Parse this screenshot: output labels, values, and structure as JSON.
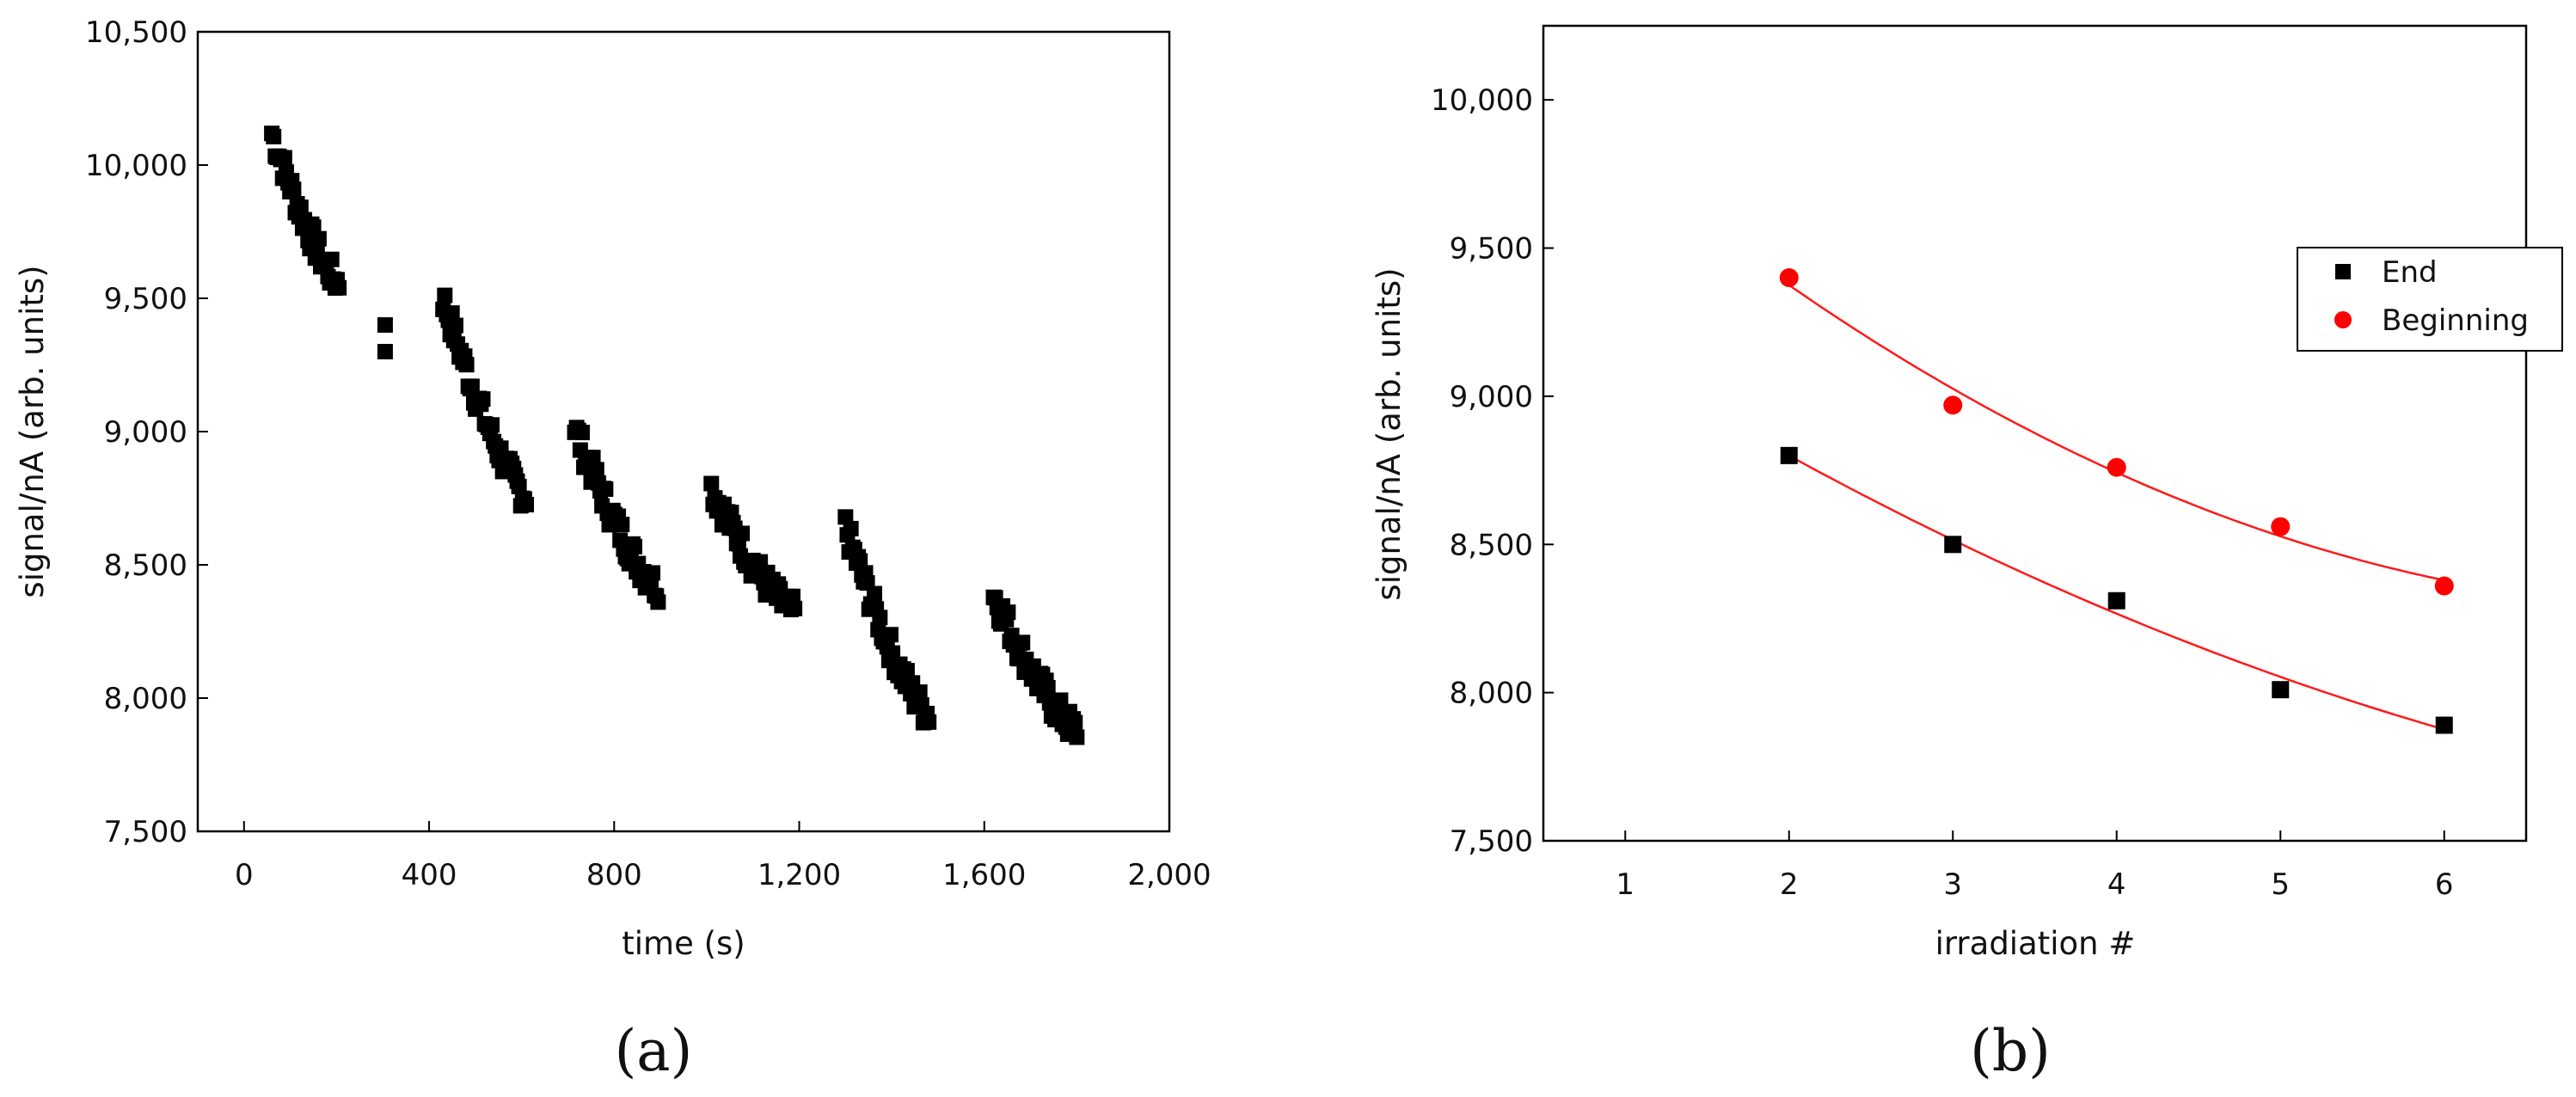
{
  "chart_data": [
    {
      "type": "scatter",
      "panel_label": "(a)",
      "xlabel": "time (s)",
      "ylabel": "signal/nA (arb. units)",
      "xlim": [
        -100,
        2000
      ],
      "ylim": [
        7500,
        10500
      ],
      "xticks": [
        0,
        400,
        800,
        1200,
        1600,
        2000
      ],
      "xtick_labels": [
        "0",
        "400",
        "800",
        "1,200",
        "1,600",
        "2,000"
      ],
      "yticks": [
        7500,
        8000,
        8500,
        9000,
        9500,
        10000,
        10500
      ],
      "ytick_labels": [
        "7,500",
        "8,000",
        "8,500",
        "9,000",
        "9,500",
        "10,000",
        "10,500"
      ],
      "marker": "square",
      "color": "#000000",
      "segments": [
        {
          "x_start": 60,
          "x_end": 205,
          "y_start": 10120,
          "y_end": 9560
        },
        {
          "x_start": 305,
          "x_end": 305,
          "y_start": 9400,
          "y_end": 9300
        },
        {
          "x_start": 430,
          "x_end": 610,
          "y_start": 9500,
          "y_end": 8760
        },
        {
          "x_start": 715,
          "x_end": 895,
          "y_start": 9010,
          "y_end": 8420
        },
        {
          "x_start": 1010,
          "x_end": 1190,
          "y_start": 8790,
          "y_end": 8320
        },
        {
          "x_start": 1300,
          "x_end": 1480,
          "y_start": 8640,
          "y_end": 7940
        },
        {
          "x_start": 1620,
          "x_end": 1800,
          "y_start": 8390,
          "y_end": 7880
        }
      ]
    },
    {
      "type": "scatter",
      "panel_label": "(b)",
      "xlabel": "irradiation #",
      "ylabel": "signal/nA (arb. units)",
      "xlim": [
        0.5,
        6.5
      ],
      "ylim": [
        7500,
        10250
      ],
      "xticks": [
        1,
        2,
        3,
        4,
        5,
        6
      ],
      "xtick_labels": [
        "1",
        "2",
        "3",
        "4",
        "5",
        "6"
      ],
      "yticks": [
        7500,
        8000,
        8500,
        9000,
        9500,
        10000
      ],
      "ytick_labels": [
        "7,500",
        "8,000",
        "8,500",
        "9,000",
        "9,500",
        "10,000"
      ],
      "legend_position": "right",
      "fit_color": "#ff1a1a",
      "series": [
        {
          "name": "End",
          "color": "#000000",
          "marker": "square",
          "x": [
            2,
            3,
            4,
            5,
            6
          ],
          "y": [
            8800,
            8500,
            8310,
            8010,
            7890
          ]
        },
        {
          "name": "Beginning",
          "color": "#ff0000",
          "marker": "circle",
          "x": [
            2,
            3,
            4,
            5,
            6
          ],
          "y": [
            9400,
            8970,
            8760,
            8560,
            8360
          ]
        }
      ]
    }
  ]
}
